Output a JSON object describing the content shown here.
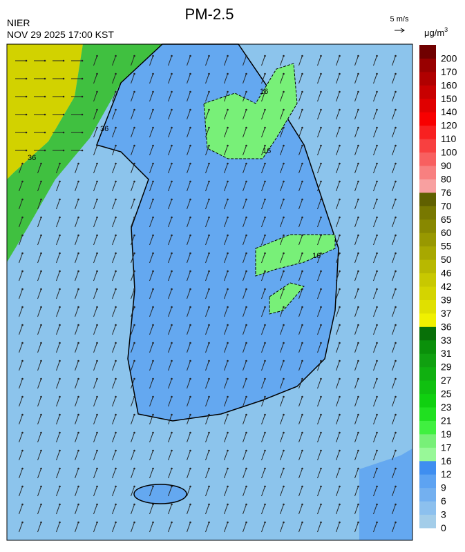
{
  "header": {
    "title": "PM-2.5",
    "source": "NIER",
    "time": "NOV 29 2025 17:00 KST",
    "wind_scale": "5 m/s",
    "unit": "μg/m",
    "unit_sup": "3"
  },
  "map": {
    "contour_labels": [
      "16",
      "16",
      "16",
      "36",
      "36"
    ]
  },
  "legend": {
    "ticks": [
      0,
      3,
      6,
      9,
      12,
      16,
      17,
      19,
      21,
      23,
      25,
      27,
      29,
      31,
      33,
      36,
      37,
      39,
      42,
      46,
      50,
      55,
      60,
      65,
      70,
      76,
      80,
      90,
      100,
      110,
      120,
      140,
      150,
      160,
      170,
      200
    ],
    "colors": [
      "#a3cde9",
      "#8cc0ee",
      "#73b0f0",
      "#5da3f2",
      "#3f8ef0",
      "#98f898",
      "#78f078",
      "#40f040",
      "#20e020",
      "#10d010",
      "#10c010",
      "#10b010",
      "#10a010",
      "#0a900a",
      "#087008",
      "#f0f000",
      "#e0e000",
      "#d4d400",
      "#c8c800",
      "#b8b800",
      "#a8a800",
      "#989800",
      "#888800",
      "#787800",
      "#606000",
      "#f8a0a0",
      "#f88080",
      "#f86060",
      "#f84040",
      "#f82020",
      "#f80000",
      "#e00000",
      "#c80000",
      "#b00000",
      "#980000",
      "#700000"
    ]
  }
}
